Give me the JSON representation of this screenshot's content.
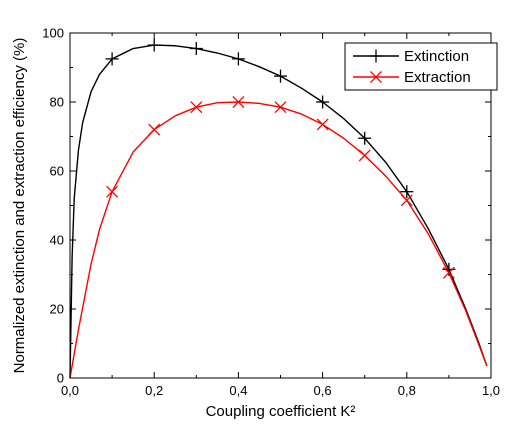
{
  "chart_data": {
    "type": "line",
    "title": "",
    "xlabel": "Coupling coefficient K²",
    "ylabel": "Normalized extinction and extraction efficiency (%)",
    "xlim": [
      0,
      1.0
    ],
    "ylim": [
      0,
      100
    ],
    "x_ticks": [
      0.0,
      0.2,
      0.4,
      0.6,
      0.8,
      1.0
    ],
    "x_tick_labels": [
      "0,0",
      "0,2",
      "0,4",
      "0,6",
      "0,8",
      "1,0"
    ],
    "y_ticks": [
      0,
      20,
      40,
      60,
      80,
      100
    ],
    "y_tick_labels": [
      "0",
      "20",
      "40",
      "60",
      "80",
      "100"
    ],
    "grid": false,
    "legend_position": "top-right",
    "series": [
      {
        "name": "Extinction",
        "color": "#000000",
        "marker": "plus",
        "points": [
          {
            "x": 0.1,
            "y": 92.5
          },
          {
            "x": 0.2,
            "y": 96.5
          },
          {
            "x": 0.3,
            "y": 95.5
          },
          {
            "x": 0.4,
            "y": 92.5
          },
          {
            "x": 0.5,
            "y": 87.5
          },
          {
            "x": 0.6,
            "y": 80.0
          },
          {
            "x": 0.7,
            "y": 69.5
          },
          {
            "x": 0.8,
            "y": 54.0
          },
          {
            "x": 0.9,
            "y": 31.5
          }
        ],
        "curve": [
          {
            "x": 0.0,
            "y": 0
          },
          {
            "x": 0.005,
            "y": 35
          },
          {
            "x": 0.01,
            "y": 52
          },
          {
            "x": 0.02,
            "y": 66
          },
          {
            "x": 0.03,
            "y": 74
          },
          {
            "x": 0.05,
            "y": 83
          },
          {
            "x": 0.07,
            "y": 88
          },
          {
            "x": 0.1,
            "y": 92.5
          },
          {
            "x": 0.15,
            "y": 95.5
          },
          {
            "x": 0.2,
            "y": 96.5
          },
          {
            "x": 0.25,
            "y": 96.3
          },
          {
            "x": 0.3,
            "y": 95.5
          },
          {
            "x": 0.35,
            "y": 94.2
          },
          {
            "x": 0.4,
            "y": 92.5
          },
          {
            "x": 0.45,
            "y": 90.2
          },
          {
            "x": 0.5,
            "y": 87.5
          },
          {
            "x": 0.55,
            "y": 84.0
          },
          {
            "x": 0.6,
            "y": 80.0
          },
          {
            "x": 0.65,
            "y": 75.2
          },
          {
            "x": 0.7,
            "y": 69.5
          },
          {
            "x": 0.75,
            "y": 62.5
          },
          {
            "x": 0.8,
            "y": 54.0
          },
          {
            "x": 0.85,
            "y": 43.5
          },
          {
            "x": 0.9,
            "y": 31.5
          },
          {
            "x": 0.94,
            "y": 20.0
          },
          {
            "x": 0.97,
            "y": 10.5
          },
          {
            "x": 0.99,
            "y": 3.5
          }
        ]
      },
      {
        "name": "Extraction",
        "color": "#ff0000",
        "marker": "cross",
        "points": [
          {
            "x": 0.1,
            "y": 54.0
          },
          {
            "x": 0.2,
            "y": 72.0
          },
          {
            "x": 0.3,
            "y": 78.5
          },
          {
            "x": 0.4,
            "y": 80.0
          },
          {
            "x": 0.5,
            "y": 78.5
          },
          {
            "x": 0.6,
            "y": 73.5
          },
          {
            "x": 0.7,
            "y": 64.5
          },
          {
            "x": 0.8,
            "y": 51.5
          },
          {
            "x": 0.9,
            "y": 30.5
          }
        ],
        "curve": [
          {
            "x": 0.0,
            "y": 0
          },
          {
            "x": 0.02,
            "y": 14
          },
          {
            "x": 0.05,
            "y": 33
          },
          {
            "x": 0.07,
            "y": 43
          },
          {
            "x": 0.1,
            "y": 54.0
          },
          {
            "x": 0.15,
            "y": 65.5
          },
          {
            "x": 0.2,
            "y": 72.0
          },
          {
            "x": 0.25,
            "y": 76.0
          },
          {
            "x": 0.3,
            "y": 78.5
          },
          {
            "x": 0.35,
            "y": 79.8
          },
          {
            "x": 0.4,
            "y": 80.0
          },
          {
            "x": 0.45,
            "y": 79.6
          },
          {
            "x": 0.5,
            "y": 78.5
          },
          {
            "x": 0.55,
            "y": 76.5
          },
          {
            "x": 0.6,
            "y": 73.5
          },
          {
            "x": 0.65,
            "y": 69.5
          },
          {
            "x": 0.7,
            "y": 64.5
          },
          {
            "x": 0.75,
            "y": 58.5
          },
          {
            "x": 0.8,
            "y": 51.5
          },
          {
            "x": 0.85,
            "y": 42.0
          },
          {
            "x": 0.9,
            "y": 30.5
          },
          {
            "x": 0.94,
            "y": 19.5
          },
          {
            "x": 0.97,
            "y": 10.0
          },
          {
            "x": 0.99,
            "y": 3.5
          }
        ]
      }
    ]
  }
}
